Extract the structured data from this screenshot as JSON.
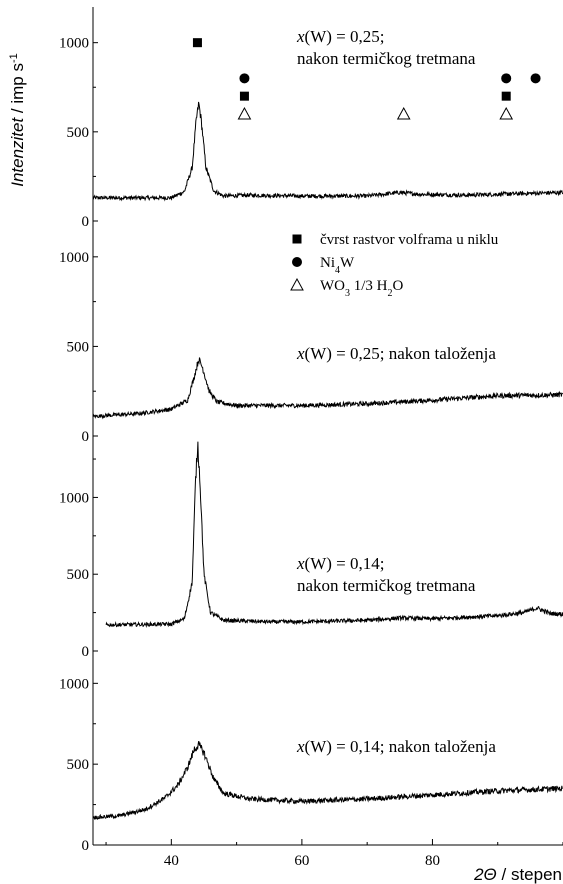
{
  "chart_data": {
    "type": "line",
    "xlabel": "2Θ / stepen",
    "xlabel_parts": {
      "main": "2",
      "sym": "Θ",
      "rest": " / stepen"
    },
    "ylabel_parts": {
      "main": "Intenzitet",
      "unit": " / imp s",
      "sup": "-1"
    },
    "xlim": [
      28,
      100
    ],
    "x_ticks": [
      40,
      60,
      80
    ],
    "line_color": "#000000",
    "marker_color": "#000000",
    "panels": [
      {
        "ylim": [
          0,
          1200
        ],
        "y_ticks": [
          0,
          500,
          1000
        ],
        "range": [
          28,
          100
        ],
        "label_lines": [
          "x(W) = 0,25;",
          "nakon termičkog tretmana"
        ],
        "label_parts": [
          [
            "x",
            "(W) = 0,25;"
          ],
          [
            "",
            "nakon termičkog tretmana"
          ]
        ],
        "baseline": [
          [
            28,
            130
          ],
          [
            40,
            130
          ],
          [
            42,
            165
          ],
          [
            43.2,
            300
          ],
          [
            43.8,
            560
          ],
          [
            44.2,
            660
          ],
          [
            44.6,
            560
          ],
          [
            45.3,
            300
          ],
          [
            46.5,
            170
          ],
          [
            48,
            140
          ],
          [
            52,
            145
          ],
          [
            60,
            140
          ],
          [
            70,
            140
          ],
          [
            75,
            160
          ],
          [
            78,
            150
          ],
          [
            85,
            145
          ],
          [
            90,
            150
          ],
          [
            100,
            160
          ]
        ],
        "markers": [
          {
            "shape": "square",
            "x": 44,
            "y": 1000
          },
          {
            "shape": "circle",
            "x": 51.2,
            "y": 800
          },
          {
            "shape": "square",
            "x": 51.2,
            "y": 700
          },
          {
            "shape": "triangle",
            "x": 51.2,
            "y": 600
          },
          {
            "shape": "triangle",
            "x": 75.6,
            "y": 600
          },
          {
            "shape": "circle",
            "x": 91.3,
            "y": 800
          },
          {
            "shape": "square",
            "x": 91.3,
            "y": 700
          },
          {
            "shape": "triangle",
            "x": 91.3,
            "y": 600
          },
          {
            "shape": "circle",
            "x": 95.8,
            "y": 800
          }
        ]
      },
      {
        "ylim": [
          0,
          1200
        ],
        "y_ticks": [
          0,
          500,
          1000
        ],
        "range": [
          28,
          100
        ],
        "label_lines": [
          "x(W) = 0,25; nakon taloženja"
        ],
        "label_parts": [
          [
            "x",
            "(W) = 0,25; nakon taloženja"
          ]
        ],
        "baseline": [
          [
            28,
            110
          ],
          [
            35,
            125
          ],
          [
            40,
            150
          ],
          [
            42.5,
            200
          ],
          [
            43.5,
            330
          ],
          [
            44.2,
            430
          ],
          [
            44.8,
            380
          ],
          [
            45.8,
            250
          ],
          [
            47,
            190
          ],
          [
            50,
            170
          ],
          [
            60,
            170
          ],
          [
            70,
            180
          ],
          [
            80,
            200
          ],
          [
            90,
            225
          ],
          [
            100,
            230
          ]
        ],
        "legend": [
          {
            "shape": "square",
            "text": "čvrst rastvor volframa u niklu",
            "parts": [
              "čvrst rastvor volframa u niklu"
            ]
          },
          {
            "shape": "circle",
            "text": "Ni4W",
            "parts": [
              "Ni",
              "4",
              "W"
            ]
          },
          {
            "shape": "triangle",
            "text": "WO3 1/3 H2O",
            "parts": [
              "WO",
              "3",
              " 1/3 H",
              "2",
              "O"
            ]
          }
        ]
      },
      {
        "ylim": [
          0,
          1400
        ],
        "y_ticks": [
          0,
          500,
          1000
        ],
        "range": [
          30,
          100
        ],
        "label_lines": [
          "x(W) = 0,14;",
          "nakon termičkog tretmana"
        ],
        "label_parts": [
          [
            "x",
            "(W) = 0,14;"
          ],
          [
            "",
            "nakon termičkog tretmana"
          ]
        ],
        "baseline": [
          [
            30,
            170
          ],
          [
            40,
            175
          ],
          [
            42,
            210
          ],
          [
            43.2,
            450
          ],
          [
            43.7,
            1100
          ],
          [
            44.05,
            1350
          ],
          [
            44.4,
            1100
          ],
          [
            45,
            500
          ],
          [
            46,
            250
          ],
          [
            48,
            200
          ],
          [
            55,
            190
          ],
          [
            60,
            190
          ],
          [
            65,
            195
          ],
          [
            70,
            200
          ],
          [
            75,
            215
          ],
          [
            80,
            210
          ],
          [
            85,
            220
          ],
          [
            90,
            230
          ],
          [
            94,
            250
          ],
          [
            96,
            280
          ],
          [
            98,
            245
          ],
          [
            100,
            240
          ]
        ]
      },
      {
        "ylim": [
          0,
          1200
        ],
        "y_ticks": [
          0,
          500,
          1000
        ],
        "range": [
          28,
          100
        ],
        "label_lines": [
          "x(W) = 0,14; nakon taloženja"
        ],
        "label_parts": [
          [
            "x",
            "(W) = 0,14; nakon taloženja"
          ]
        ],
        "baseline": [
          [
            28,
            170
          ],
          [
            32,
            180
          ],
          [
            36,
            220
          ],
          [
            39,
            290
          ],
          [
            41,
            370
          ],
          [
            42.5,
            480
          ],
          [
            43.5,
            590
          ],
          [
            44.2,
            620
          ],
          [
            45,
            570
          ],
          [
            46.5,
            410
          ],
          [
            48,
            320
          ],
          [
            52,
            285
          ],
          [
            60,
            270
          ],
          [
            70,
            285
          ],
          [
            80,
            310
          ],
          [
            90,
            335
          ],
          [
            100,
            350
          ]
        ]
      }
    ]
  }
}
